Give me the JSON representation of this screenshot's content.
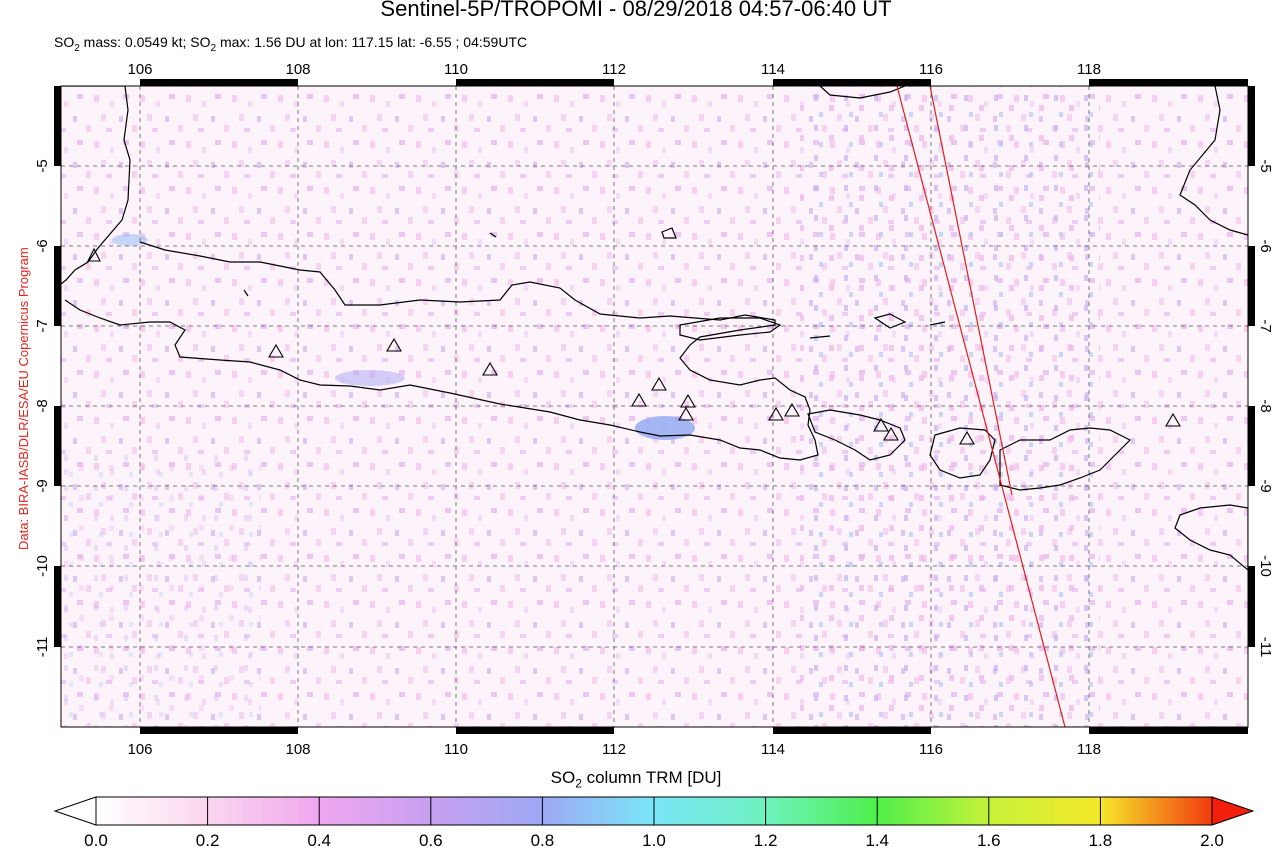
{
  "title": "Sentinel-5P/TROPOMI - 08/29/2018 04:57-06:40 UT",
  "subtitle": {
    "mass_prefix": "SO",
    "mass_sub": "2",
    "mass_text": " mass: 0.0549 kt; SO",
    "max_sub": "2",
    "max_text": " max: 1.56 DU at lon: 117.15 lat: -6.55 ; 04:59UTC"
  },
  "credit": "Data: BIRA-IASB/DLR/ESA/EU Copernicus Program",
  "colorbar": {
    "label_prefix": "SO",
    "label_sub": "2",
    "label_suffix": " column TRM [DU]",
    "ticks": [
      "0.0",
      "0.2",
      "0.4",
      "0.6",
      "0.8",
      "1.0",
      "1.2",
      "1.4",
      "1.6",
      "1.8",
      "2.0"
    ],
    "colors": [
      "#ffffff",
      "#fbd6ef",
      "#efa6ef",
      "#c8a0f0",
      "#9ea8f4",
      "#7ae6f8",
      "#6ef2c0",
      "#4ef04a",
      "#c6f23a",
      "#f6e82a",
      "#f79b1b",
      "#f23a10"
    ]
  },
  "map": {
    "lon_ticks": [
      "106",
      "108",
      "110",
      "112",
      "114",
      "116",
      "118"
    ],
    "lat_ticks": [
      "-5",
      "-6",
      "-7",
      "-8",
      "-9",
      "-10",
      "-11"
    ],
    "volcano_count": 14
  }
}
